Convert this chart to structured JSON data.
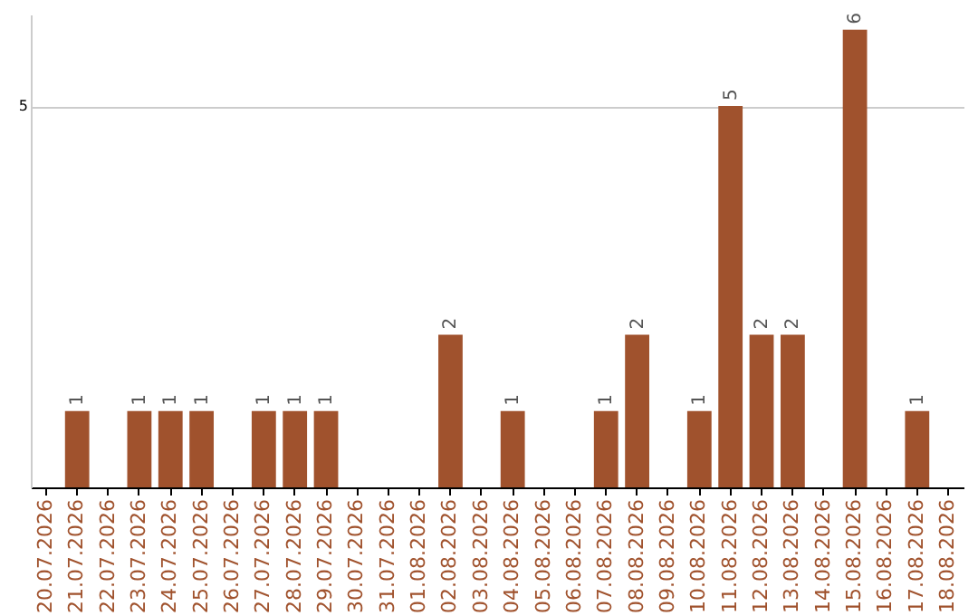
{
  "chart_data": {
    "type": "bar",
    "categories": [
      "20.07.2026",
      "21.07.2026",
      "22.07.2026",
      "23.07.2026",
      "24.07.2026",
      "25.07.2026",
      "26.07.2026",
      "27.07.2026",
      "28.07.2026",
      "29.07.2026",
      "30.07.2026",
      "31.07.2026",
      "01.08.2026",
      "02.08.2026",
      "03.08.2026",
      "04.08.2026",
      "05.08.2026",
      "06.08.2026",
      "07.08.2026",
      "08.08.2026",
      "09.08.2026",
      "10.08.2026",
      "11.08.2026",
      "12.08.2026",
      "13.08.2026",
      "14.08.2026",
      "15.08.2026",
      "16.08.2026",
      "17.08.2026",
      "18.08.2026"
    ],
    "values": [
      0,
      1,
      0,
      1,
      1,
      1,
      0,
      1,
      1,
      1,
      0,
      0,
      0,
      2,
      0,
      1,
      0,
      0,
      1,
      2,
      0,
      1,
      5,
      2,
      2,
      0,
      6,
      0,
      1,
      0
    ],
    "value_labels": [
      null,
      "1",
      null,
      "1",
      "1",
      "1",
      null,
      "1",
      "1",
      "1",
      null,
      null,
      null,
      "2",
      null,
      "1",
      null,
      null,
      "1",
      "2",
      null,
      "1",
      "5",
      "2",
      "2",
      null,
      "6",
      null,
      "1",
      null
    ],
    "color": "#a0522d",
    "ylim": [
      0,
      6.2
    ],
    "yticks": [
      5
    ],
    "grid": "y"
  }
}
